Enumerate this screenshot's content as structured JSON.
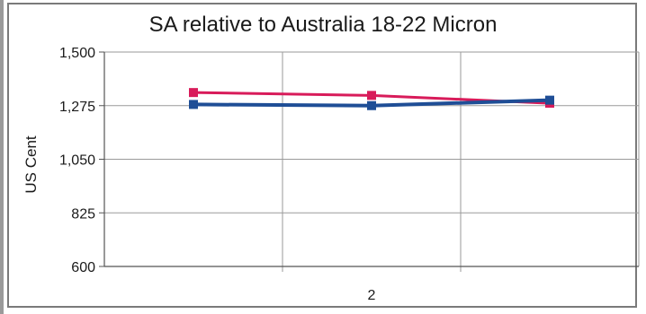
{
  "chart_data": {
    "type": "line",
    "title": "SA relative to Australia 18-22 Micron",
    "ylabel": "US Cent",
    "xlabel": "",
    "ylim": [
      600,
      1500
    ],
    "yticks": [
      "1,500",
      "1,275",
      "1,050",
      "825",
      "600"
    ],
    "ytick_values": [
      1500,
      1275,
      1050,
      825,
      600
    ],
    "categories": [
      "",
      "2",
      ""
    ],
    "grid": true,
    "legend": "none",
    "series": [
      {
        "color": "#d81b5a",
        "values": [
          1330,
          1318,
          1285
        ]
      },
      {
        "color": "#1f4e96",
        "values": [
          1280,
          1275,
          1298
        ]
      }
    ]
  }
}
